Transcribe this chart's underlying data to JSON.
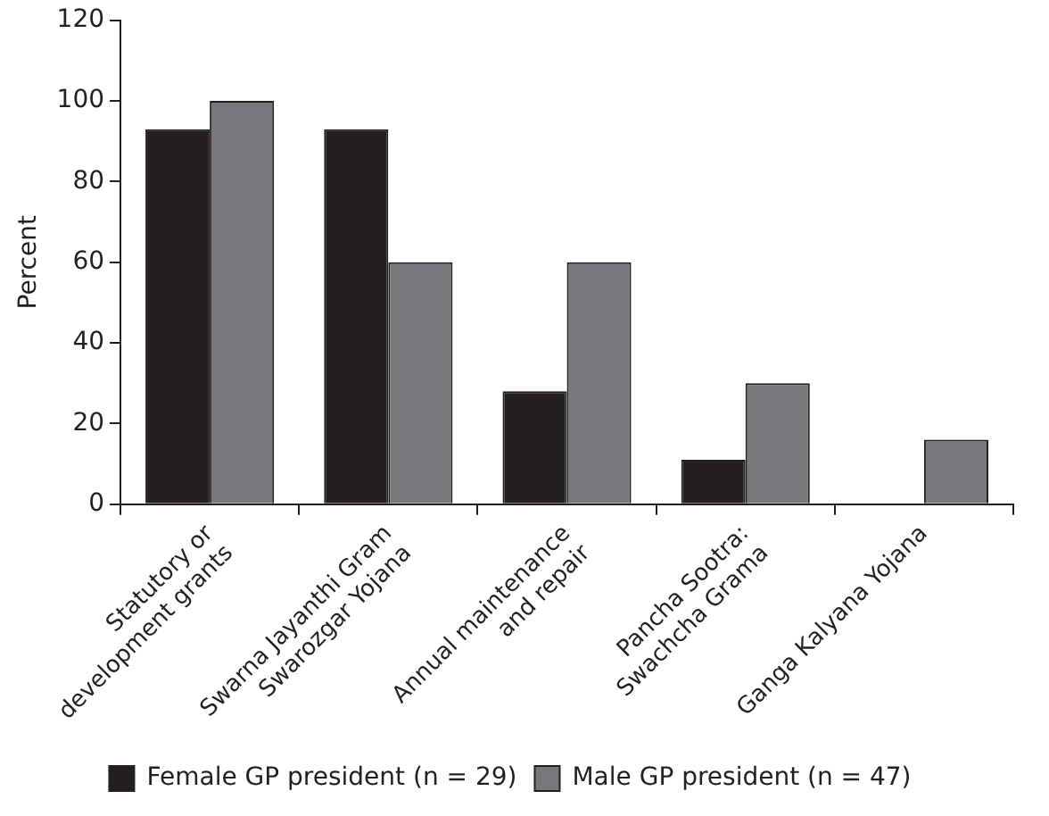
{
  "chart_data": {
    "type": "bar",
    "ylabel": "Percent",
    "categories": [
      "Statutory or development grants",
      "Swarna Jayanthi Gram Swarozgar Yojana",
      "Annual maintenance and repair",
      "Pancha Sootra: Swachcha Grama",
      "Ganga Kalyana Yojana"
    ],
    "series": [
      {
        "name": "Female GP president (n = 29)",
        "color": "#231f20",
        "values": [
          93,
          93,
          28,
          11,
          0
        ]
      },
      {
        "name": "Male GP president (n = 47)",
        "color": "#77787b",
        "values": [
          100,
          60,
          60,
          30,
          16
        ]
      }
    ],
    "ylim": [
      0,
      120
    ],
    "yticks": [
      0,
      20,
      40,
      60,
      80,
      100,
      120
    ],
    "grid": false,
    "legend": "bottom"
  }
}
